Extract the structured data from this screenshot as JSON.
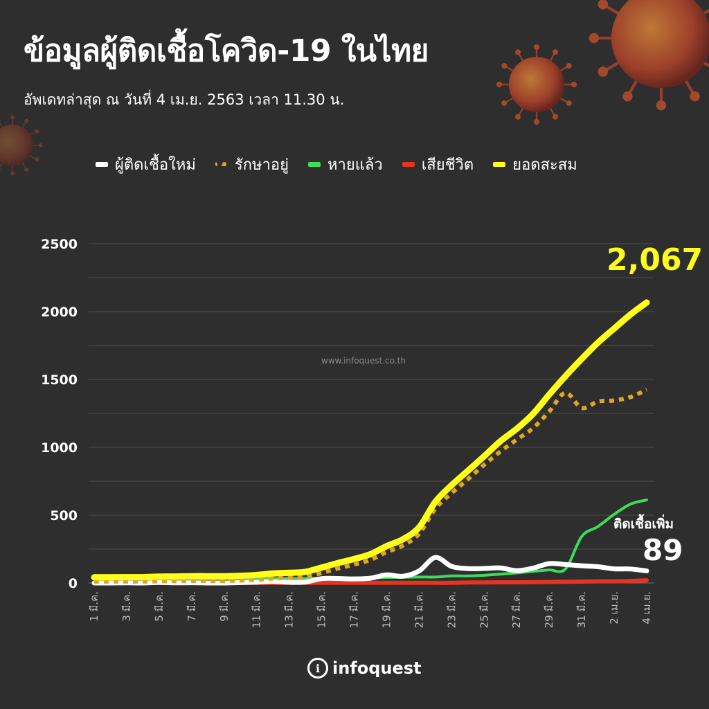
{
  "header": {
    "title": "ข้อมูลผู้ติดเชื้อโควิด-19 ในไทย",
    "subtitle": "อัพเดทล่าสุด ณ วันที่ 4 เม.ย. 2563 เวลา 11.30 น."
  },
  "legend": [
    {
      "label": "ผู้ติดเชื้อใหม่",
      "color": "#ffffff",
      "style": "solid"
    },
    {
      "label": "รักษาอยู่",
      "color": "#e0a526",
      "style": "dotted"
    },
    {
      "label": "หายแล้ว",
      "color": "#3ddc5a",
      "style": "solid"
    },
    {
      "label": "เสียชีวิต",
      "color": "#e8331f",
      "style": "solid"
    },
    {
      "label": "ยอดสะสม",
      "color": "#ffff1a",
      "style": "solid"
    }
  ],
  "annotations": {
    "total_value": "2,067",
    "new_label": "ติดเชื้อเพิ่ม",
    "new_value": "89",
    "watermark": "www.infoquest.co.th"
  },
  "brand": {
    "icon": "info-icon",
    "icon_glyph": "i",
    "name": "infoquest"
  },
  "chart_data": {
    "type": "line",
    "x": [
      "1 มี.ค.",
      "2 มี.ค.",
      "3 มี.ค.",
      "4 มี.ค.",
      "5 มี.ค.",
      "6 มี.ค.",
      "7 มี.ค.",
      "8 มี.ค.",
      "9 มี.ค.",
      "10 มี.ค.",
      "11 มี.ค.",
      "12 มี.ค.",
      "13 มี.ค.",
      "14 มี.ค.",
      "15 มี.ค.",
      "16 มี.ค.",
      "17 มี.ค.",
      "18 มี.ค.",
      "19 มี.ค.",
      "20 มี.ค.",
      "21 มี.ค.",
      "22 มี.ค.",
      "23 มี.ค.",
      "24 มี.ค.",
      "25 มี.ค.",
      "26 มี.ค.",
      "27 มี.ค.",
      "28 มี.ค.",
      "29 มี.ค.",
      "30 มี.ค.",
      "31 มี.ค.",
      "1 เม.ย.",
      "2 เม.ย.",
      "3 เม.ย.",
      "4 เม.ย."
    ],
    "tick_labels": [
      "1 มี.ค.",
      "3 มี.ค.",
      "5 มี.ค.",
      "7 มี.ค.",
      "9 มี.ค.",
      "11 มี.ค.",
      "13 มี.ค.",
      "15 มี.ค.",
      "17 มี.ค.",
      "19 มี.ค.",
      "21 มี.ค.",
      "23 มี.ค.",
      "25 มี.ค.",
      "27 มี.ค.",
      "29 มี.ค.",
      "31 มี.ค.",
      "2 เม.ย.",
      "4 เม.ย."
    ],
    "yticks": [
      0,
      500,
      1000,
      1500,
      2000,
      2500
    ],
    "ylim": [
      0,
      2500
    ],
    "grid": true,
    "legend_position": "top",
    "series": [
      {
        "name": "ยอดสะสม",
        "color": "#ffff1a",
        "style": "solid",
        "values": [
          42,
          42,
          43,
          43,
          47,
          48,
          50,
          50,
          50,
          53,
          59,
          70,
          75,
          82,
          114,
          147,
          177,
          212,
          272,
          322,
          411,
          599,
          721,
          827,
          934,
          1045,
          1136,
          1245,
          1388,
          1524,
          1651,
          1771,
          1875,
          1978,
          2067
        ]
      },
      {
        "name": "รักษาอยู่",
        "color": "#e0a526",
        "style": "dotted",
        "values": [
          11,
          11,
          11,
          11,
          13,
          14,
          15,
          15,
          15,
          18,
          24,
          33,
          38,
          45,
          74,
          107,
          136,
          170,
          228,
          276,
          363,
          548,
          662,
          765,
          871,
          969,
          1056,
          1140,
          1263,
          1401,
          1290,
          1337,
          1345,
          1370,
          1425
        ]
      },
      {
        "name": "หายแล้ว",
        "color": "#3ddc5a",
        "style": "solid",
        "values": [
          30,
          30,
          31,
          31,
          31,
          31,
          31,
          31,
          31,
          31,
          31,
          33,
          33,
          33,
          35,
          35,
          37,
          38,
          40,
          42,
          44,
          44,
          52,
          52,
          57,
          65,
          74,
          86,
          96,
          103,
          342,
          416,
          506,
          581,
          612
        ]
      },
      {
        "name": "เสียชีวิต",
        "color": "#e8331f",
        "style": "solid",
        "values": [
          1,
          1,
          1,
          1,
          1,
          1,
          1,
          1,
          1,
          1,
          1,
          1,
          1,
          1,
          1,
          1,
          1,
          1,
          1,
          1,
          1,
          1,
          1,
          4,
          4,
          5,
          5,
          6,
          7,
          9,
          10,
          12,
          12,
          15,
          20
        ]
      },
      {
        "name": "ผู้ติดเชื้อใหม่",
        "color": "#ffffff",
        "style": "solid",
        "values": [
          0,
          0,
          1,
          0,
          4,
          1,
          2,
          0,
          0,
          3,
          6,
          11,
          5,
          7,
          32,
          33,
          30,
          35,
          60,
          50,
          89,
          188,
          122,
          106,
          107,
          111,
          91,
          109,
          143,
          136,
          127,
          120,
          104,
          103,
          89
        ]
      }
    ]
  }
}
